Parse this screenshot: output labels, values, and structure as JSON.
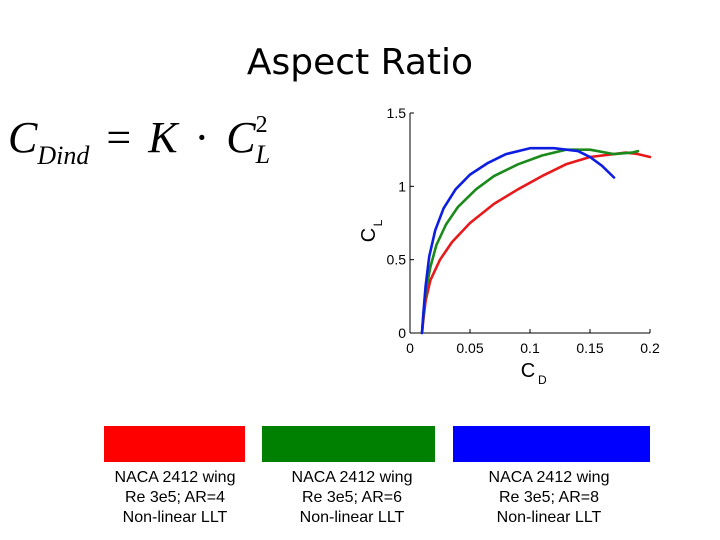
{
  "title": "Aspect Ratio",
  "formula": {
    "lhs_main": "C",
    "lhs_sub": "Dind",
    "equals": "=",
    "k": "K",
    "dot": "·",
    "rhs_main": "C",
    "rhs_sup": "2",
    "rhs_sub": "L"
  },
  "chart_data": {
    "type": "line",
    "title": "",
    "xlabel": "C",
    "xlabel_sub": "D",
    "ylabel": "C",
    "ylabel_sub": "L",
    "xlim": [
      0,
      0.2
    ],
    "ylim": [
      0,
      1.5
    ],
    "xticks": [
      0,
      0.05,
      0.1,
      0.15,
      0.2
    ],
    "xtick_labels": [
      "0",
      "0.05",
      "0.1",
      "0.15",
      "0.2"
    ],
    "yticks": [
      0,
      0.5,
      1,
      1.5
    ],
    "ytick_labels": [
      "0",
      "0.5",
      "1",
      "1.5"
    ],
    "series": [
      {
        "name": "AR=4",
        "color": "#e8191b",
        "x": [
          0.01,
          0.011,
          0.013,
          0.017,
          0.025,
          0.035,
          0.05,
          0.07,
          0.09,
          0.11,
          0.13,
          0.15,
          0.17,
          0.18,
          0.19,
          0.2
        ],
        "y": [
          0.0,
          0.08,
          0.22,
          0.36,
          0.5,
          0.62,
          0.75,
          0.88,
          0.98,
          1.07,
          1.15,
          1.2,
          1.22,
          1.23,
          1.22,
          1.2
        ]
      },
      {
        "name": "AR=6",
        "color": "#1a8a1a",
        "x": [
          0.01,
          0.011,
          0.013,
          0.017,
          0.022,
          0.03,
          0.04,
          0.055,
          0.07,
          0.09,
          0.11,
          0.13,
          0.15,
          0.17,
          0.185,
          0.19
        ],
        "y": [
          0.0,
          0.1,
          0.28,
          0.45,
          0.6,
          0.74,
          0.86,
          0.98,
          1.07,
          1.15,
          1.21,
          1.25,
          1.25,
          1.22,
          1.23,
          1.24
        ]
      },
      {
        "name": "AR=8",
        "color": "#0d1ee0",
        "x": [
          0.01,
          0.011,
          0.013,
          0.016,
          0.021,
          0.028,
          0.038,
          0.05,
          0.065,
          0.08,
          0.1,
          0.12,
          0.14,
          0.15,
          0.16,
          0.17
        ],
        "y": [
          0.0,
          0.12,
          0.32,
          0.52,
          0.7,
          0.85,
          0.98,
          1.08,
          1.16,
          1.22,
          1.26,
          1.26,
          1.24,
          1.2,
          1.14,
          1.06
        ]
      }
    ]
  },
  "legend": [
    {
      "color": "#ff0000",
      "lines": [
        "NACA 2412 wing",
        "Re 3e5; AR=4",
        "Non-linear LLT"
      ]
    },
    {
      "color": "#008000",
      "lines": [
        "NACA 2412 wing",
        "Re 3e5; AR=6",
        "Non-linear LLT"
      ]
    },
    {
      "color": "#0000ff",
      "lines": [
        "NACA 2412 wing",
        "Re 3e5; AR=8",
        "Non-linear LLT"
      ]
    }
  ]
}
